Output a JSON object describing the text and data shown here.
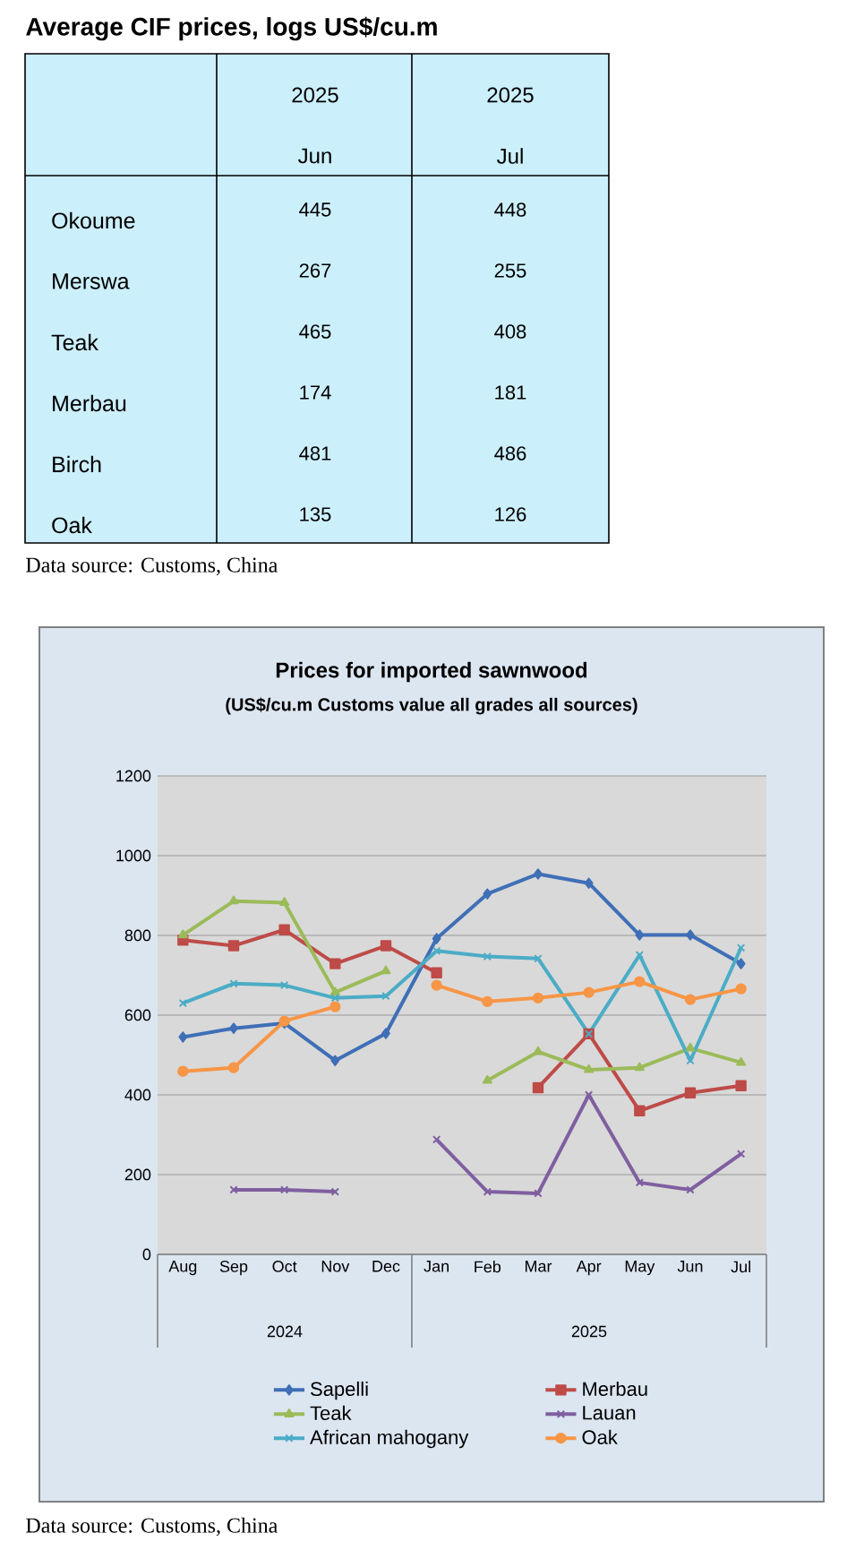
{
  "chart_data": [
    {
      "type": "other",
      "title": "Average CIF prices, logs US$/cu.m",
      "categories": [
        "Okoume",
        "Merswa",
        "Teak",
        "Merbau",
        "Birch",
        "Oak"
      ],
      "series": [
        {
          "name": "Jun",
          "values": [
            445,
            267,
            465,
            174,
            481,
            135
          ]
        },
        {
          "name": "Jul",
          "values": [
            448,
            255,
            408,
            181,
            486,
            126
          ]
        }
      ],
      "data_labels": true,
      "annotations": [
        "2025",
        "2025",
        "Data source: Customs, China"
      ]
    },
    {
      "type": "line",
      "title": "Prices for imported sawnwood",
      "subtitle": "(US$/cu.m Customs value all grades all sources)",
      "categories": [
        "Aug",
        "Sep",
        "Oct",
        "Nov",
        "Dec",
        "Jan",
        "Feb",
        "Mar",
        "Apr",
        "May",
        "Jun",
        "Jul"
      ],
      "ylim": [
        0,
        1200
      ],
      "yticks": [
        0,
        200,
        400,
        600,
        800,
        1000,
        1200
      ],
      "grid": "y",
      "legend": "bottom",
      "series": [
        {
          "name": "Sapelli",
          "color": "#3f6fb6",
          "marker": "diamond",
          "values": [
            545,
            567,
            580,
            486,
            554,
            792,
            904,
            954,
            931,
            801,
            801,
            729
          ]
        },
        {
          "name": "Merbau",
          "color": "#be4b48",
          "marker": "square",
          "values": [
            788,
            774,
            814,
            729,
            774,
            706,
            null,
            418,
            553,
            360,
            405,
            423
          ]
        },
        {
          "name": "Teak",
          "color": "#9bbb59",
          "marker": "triangle",
          "values": [
            801,
            886,
            882,
            657,
            711,
            null,
            436,
            508,
            463,
            468,
            517,
            481
          ]
        },
        {
          "name": "Lauan",
          "color": "#7f5fa0",
          "marker": "cross",
          "values": [
            null,
            162,
            162,
            157,
            null,
            288,
            157,
            153,
            400,
            180,
            162,
            252
          ]
        },
        {
          "name": "African mahogany",
          "color": "#4bacc6",
          "marker": "cross",
          "values": [
            630,
            679,
            675,
            643,
            648,
            761,
            747,
            742,
            553,
            751,
            486,
            769
          ]
        },
        {
          "name": "Oak",
          "color": "#f79646",
          "marker": "circle",
          "values": [
            459,
            468,
            585,
            621,
            null,
            675,
            634,
            643,
            657,
            684,
            639,
            666
          ]
        }
      ],
      "annotations": [
        "2024",
        "2025",
        "Data source: Customs, China"
      ]
    }
  ]
}
